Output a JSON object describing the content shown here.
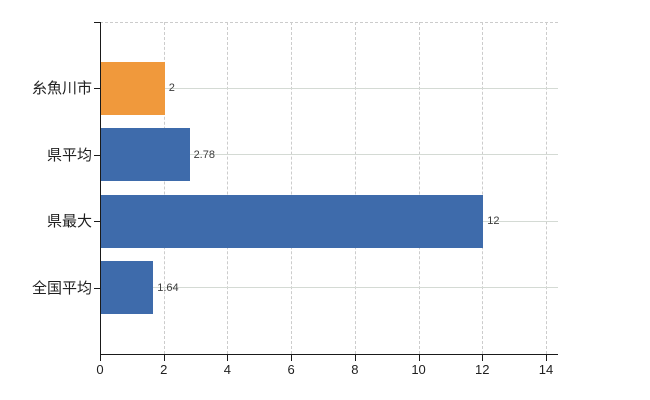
{
  "chart_data": {
    "type": "bar",
    "orientation": "horizontal",
    "title": "",
    "xlabel": "",
    "ylabel": "",
    "categories": [
      "糸魚川市",
      "県平均",
      "県最大",
      "全国平均"
    ],
    "values": [
      2,
      2.78,
      12,
      1.64
    ],
    "value_labels": [
      "2",
      "2.78",
      "12",
      "1.64"
    ],
    "bar_colors": [
      "#f0993c",
      "#3e6bab",
      "#3e6bab",
      "#3e6bab"
    ],
    "xlim": [
      0,
      14
    ],
    "x_ticks": [
      0,
      2,
      4,
      6,
      8,
      10,
      12,
      14
    ],
    "x_tick_labels": [
      "0",
      "2",
      "4",
      "6",
      "8",
      "10",
      "12",
      "14"
    ],
    "grid": true,
    "legend": "none"
  },
  "colors": {
    "background": "#ffffff",
    "axis": "#1a1a1a",
    "grid_vertical_dashed": "#cccccc",
    "grid_horizontal_solid": "#d4dad4",
    "top_border_dashed": "#cccccc",
    "category_text": "#1f1f1f",
    "tick_text": "#1f1f1f",
    "value_text": "#3c3c3c",
    "bar_highlight_orange": "#f0993c",
    "bar_default_blue": "#3e6bab"
  }
}
